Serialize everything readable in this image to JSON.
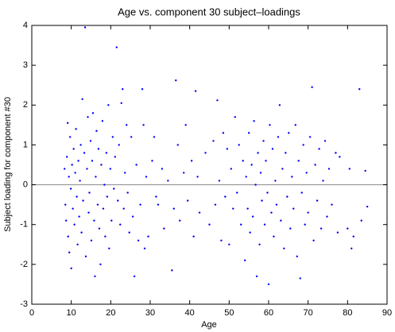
{
  "chart_data": {
    "type": "scatter",
    "title": "Age vs. component 30 subject–loadings",
    "x_label": "Age",
    "y_label": "Subject loading for component #30",
    "color": "#0000ff",
    "hline": 0,
    "xlim": [
      0,
      90
    ],
    "xticks": [
      0,
      10,
      20,
      30,
      40,
      50,
      60,
      70,
      80,
      90
    ],
    "ylim": [
      -3,
      4
    ],
    "yticks": [
      -3,
      -2,
      -1,
      0,
      1,
      2,
      3,
      4
    ],
    "x": [
      8.3,
      8.5,
      8.7,
      8.9,
      9.1,
      9.2,
      9.4,
      9.5,
      9.7,
      9.9,
      10.0,
      10.2,
      10.4,
      10.6,
      10.8,
      11.0,
      11.2,
      11.4,
      11.6,
      11.8,
      12.0,
      12.2,
      12.4,
      12.6,
      12.8,
      13.0,
      13.3,
      13.5,
      13.7,
      14.0,
      14.2,
      14.4,
      14.6,
      14.9,
      15.1,
      15.3,
      15.5,
      15.8,
      16.0,
      16.2,
      16.4,
      16.7,
      16.9,
      17.1,
      17.4,
      17.6,
      17.9,
      18.1,
      18.4,
      18.6,
      18.9,
      19.1,
      19.4,
      19.6,
      19.9,
      20.2,
      20.5,
      20.8,
      21.1,
      21.5,
      21.8,
      22.1,
      22.4,
      22.7,
      23.0,
      23.3,
      23.6,
      24.0,
      24.3,
      24.7,
      25.2,
      25.6,
      26.0,
      26.5,
      27.0,
      27.5,
      28.0,
      28.3,
      28.6,
      29.0,
      29.5,
      30.5,
      31.0,
      31.5,
      32.0,
      33.0,
      33.5,
      34.5,
      35.5,
      36.0,
      36.5,
      37.0,
      37.5,
      38.5,
      39.0,
      39.5,
      40.5,
      41.0,
      41.5,
      42.0,
      42.5,
      44.0,
      45.0,
      46.0,
      46.5,
      47.0,
      47.5,
      48.0,
      48.5,
      49.0,
      49.5,
      50.0,
      50.5,
      51.0,
      51.5,
      52.0,
      52.5,
      53.0,
      53.5,
      54.0,
      54.3,
      54.7,
      55.0,
      55.3,
      55.7,
      56.0,
      56.3,
      56.7,
      57.0,
      57.3,
      57.7,
      58.0,
      58.3,
      58.7,
      59.0,
      59.3,
      59.7,
      60.0,
      60.3,
      60.7,
      61.0,
      61.3,
      61.7,
      62.0,
      62.4,
      62.8,
      63.1,
      63.5,
      63.9,
      64.3,
      64.7,
      65.1,
      65.5,
      65.9,
      66.3,
      66.8,
      67.2,
      67.6,
      68.0,
      68.4,
      68.8,
      69.2,
      69.6,
      70.0,
      70.5,
      71.0,
      71.4,
      71.8,
      72.3,
      72.8,
      73.3,
      73.8,
      74.3,
      74.8,
      75.3,
      76.0,
      77.0,
      77.5,
      78.0,
      80.0,
      80.5,
      81.0,
      81.5,
      83.0,
      83.5,
      84.5,
      85.0
    ],
    "values": [
      0.4,
      -0.5,
      -0.9,
      0.7,
      1.55,
      -1.3,
      0.2,
      -1.7,
      1.2,
      -0.1,
      -2.1,
      0.5,
      -0.6,
      0.9,
      -1.0,
      0.3,
      1.4,
      -0.3,
      -1.5,
      0.6,
      -0.8,
      0.1,
      1.0,
      -1.2,
      2.15,
      -0.4,
      0.8,
      3.95,
      -1.8,
      0.4,
      1.7,
      -0.7,
      -0.2,
      1.1,
      -1.4,
      0.6,
      1.8,
      -0.9,
      -2.3,
      0.2,
      1.35,
      -0.5,
      0.9,
      -1.1,
      -2.0,
      0.5,
      1.6,
      -0.6,
      0.0,
      -1.3,
      0.8,
      -0.3,
      2.0,
      -1.6,
      0.4,
      -0.9,
      1.2,
      -0.1,
      0.7,
      3.45,
      -0.4,
      1.0,
      -1.0,
      2.05,
      2.4,
      -0.6,
      0.3,
      1.5,
      -0.2,
      -1.2,
      1.2,
      -0.8,
      -2.3,
      0.5,
      -1.4,
      -0.5,
      2.4,
      1.5,
      -1.6,
      0.2,
      -1.3,
      0.6,
      1.2,
      -0.3,
      -0.5,
      0.4,
      -1.1,
      0.1,
      -2.15,
      -0.6,
      2.62,
      1.0,
      -0.9,
      0.3,
      1.5,
      -0.4,
      0.6,
      -1.3,
      2.35,
      0.2,
      -0.7,
      0.8,
      -1.0,
      1.1,
      -0.5,
      2.12,
      0.1,
      -1.4,
      1.3,
      -0.3,
      0.9,
      -1.5,
      0.4,
      -0.6,
      1.7,
      -0.2,
      1.0,
      -1.0,
      0.6,
      -1.9,
      0.2,
      -0.6,
      1.3,
      -1.2,
      0.5,
      -0.8,
      1.6,
      0.0,
      -2.3,
      0.8,
      -1.5,
      0.3,
      -0.4,
      1.1,
      -1.0,
      0.6,
      -0.2,
      -2.5,
      1.5,
      -0.7,
      0.9,
      -1.3,
      0.1,
      -0.5,
      1.2,
      2.0,
      -0.9,
      0.4,
      -1.6,
      0.8,
      -0.3,
      1.3,
      -1.1,
      0.2,
      -0.6,
      1.5,
      -1.8,
      0.6,
      -2.35,
      -0.2,
      1.0,
      -1.0,
      0.3,
      -0.7,
      1.2,
      2.45,
      -1.4,
      0.5,
      -0.4,
      0.9,
      -1.1,
      0.1,
      1.1,
      -0.8,
      0.4,
      -0.5,
      0.8,
      -1.2,
      0.7,
      -1.1,
      0.4,
      -1.6,
      -1.3,
      2.4,
      -0.9,
      0.35,
      -0.55
    ]
  }
}
